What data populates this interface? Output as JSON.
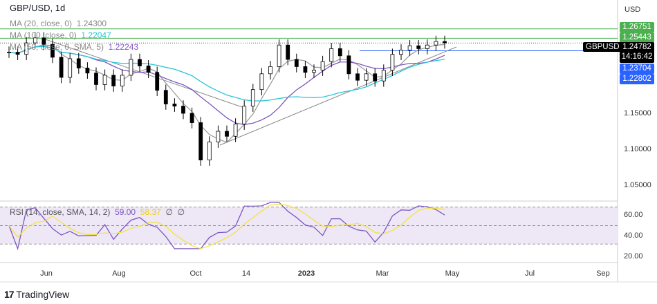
{
  "header": {
    "symbol_title": "GBP/USD, 1d",
    "currency": "USD"
  },
  "indicators": [
    {
      "label": "MA (20, close, 0)",
      "value": "1.24300",
      "color": "#9e9e9e"
    },
    {
      "label": "MA (100, close, 0)",
      "value": "1.22047",
      "color": "#26c6da"
    },
    {
      "label": "MA (50, close, 0, SMA, 5)",
      "value": "1.22243",
      "color": "#7e57c2"
    }
  ],
  "rsi": {
    "label": "RSI (14, close, SMA, 14, 2)",
    "value": "59.00",
    "sma_value": "58.37",
    "extra1": "∅",
    "extra2": "∅",
    "ticks": [
      "60.00",
      "40.00",
      "20.00"
    ]
  },
  "price_tags": {
    "g1": "1.26751",
    "g2": "1.25443",
    "symbol": "GBPUSD",
    "last": "1.24782",
    "countdown": "14:16:42",
    "b1": "1.23704",
    "b2": "1.22802"
  },
  "price_ticks": [
    "1.15000",
    "1.10000",
    "1.05000"
  ],
  "time_ticks": [
    "Jun",
    "Aug",
    "Oct",
    "14",
    "2023",
    "Mar",
    "May",
    "Jul",
    "Sep"
  ],
  "brand": "TradingView",
  "colors": {
    "up": "#000000",
    "down": "#000000",
    "green_level": "#4caf50",
    "blue_level": "#2962ff",
    "rsi": "#7e57c2",
    "rsi_sma": "#f5e13b"
  },
  "chart_data": {
    "type": "candlestick",
    "timeframe": "weekly-approx",
    "start": "2022-05-02",
    "closes": [
      1.235,
      1.232,
      1.248,
      1.255,
      1.246,
      1.228,
      1.2,
      1.226,
      1.213,
      1.206,
      1.19,
      1.203,
      1.188,
      1.203,
      1.225,
      1.216,
      1.207,
      1.182,
      1.163,
      1.16,
      1.15,
      1.137,
      1.085,
      1.11,
      1.125,
      1.118,
      1.135,
      1.16,
      1.183,
      1.205,
      1.215,
      1.245,
      1.225,
      1.215,
      1.207,
      1.21,
      1.222,
      1.24,
      1.23,
      1.205,
      1.196,
      1.205,
      1.195,
      1.21,
      1.232,
      1.238,
      1.244,
      1.24,
      1.245,
      1.25,
      1.248
    ],
    "levels": {
      "green": [
        1.26751,
        1.25443
      ],
      "blue": [
        1.23704
      ],
      "last": 1.24782
    }
  }
}
